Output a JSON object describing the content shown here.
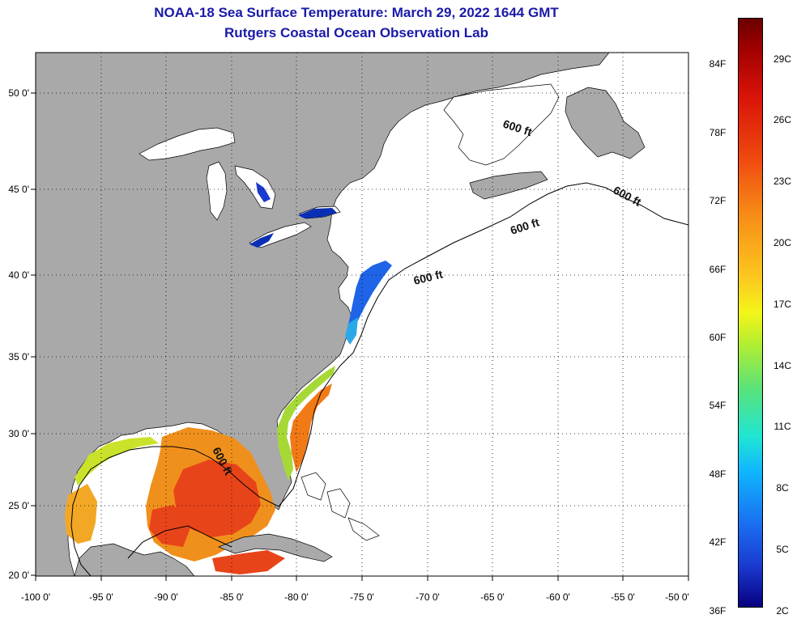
{
  "title": "NOAA-18 Sea Surface Temperature:  March 29, 2022 1644 GMT",
  "subtitle": "Rutgers Coastal Ocean Observation Lab",
  "map": {
    "lat_ticks": [
      "50 0'",
      "45 0'",
      "40 0'",
      "35 0'",
      "30 0'",
      "25 0'",
      "20 0'"
    ],
    "lon_ticks": [
      "-100 0'",
      "-95 0'",
      "-90 0'",
      "-85 0'",
      "-80 0'",
      "-75 0'",
      "-70 0'",
      "-65 0'",
      "-60 0'",
      "-55 0'",
      "-50 0'"
    ],
    "contour_labels": [
      "600 ft",
      "600 ft",
      "600 ft",
      "600 ft",
      "600 ft"
    ],
    "colors": {
      "land": "#a9a9a9",
      "ocean": "#ffffff",
      "warm_gulf": "#ee5a14",
      "cold_shelf": "#1f64e8"
    }
  },
  "colorbar": {
    "fahrenheit": [
      "84F",
      "78F",
      "72F",
      "66F",
      "60F",
      "54F",
      "48F",
      "42F",
      "36F"
    ],
    "celsius": [
      "29C",
      "26C",
      "23C",
      "20C",
      "17C",
      "14C",
      "11C",
      "8C",
      "5C",
      "2C"
    ]
  }
}
